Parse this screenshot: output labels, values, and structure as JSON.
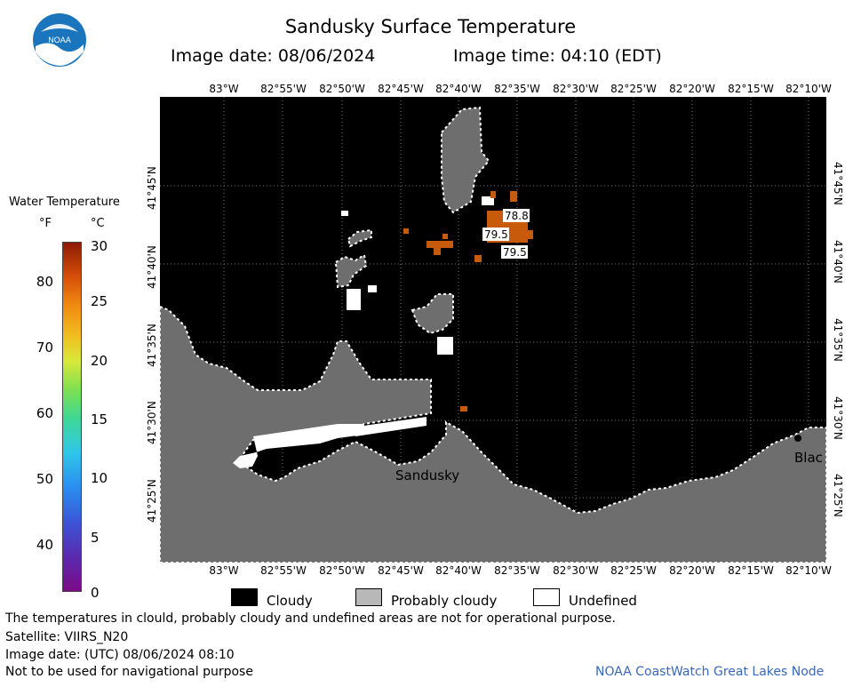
{
  "title": "Sandusky Surface Temperature",
  "image_date_label": "Image date: 08/06/2024",
  "image_time_label": "Image time: 04:10 (EDT)",
  "logo_text": "NOAA",
  "lon_labels": [
    "83°W",
    "82°55'W",
    "82°50'W",
    "82°45'W",
    "82°40'W",
    "82°35'W",
    "82°30'W",
    "82°25'W",
    "82°20'W",
    "82°15'W",
    "82°10'W"
  ],
  "lat_labels": [
    "41°45'N",
    "41°40'N",
    "41°35'N",
    "41°30'N",
    "41°25'N"
  ],
  "place_labels": {
    "sandusky": "Sandusky",
    "blac": "Blac"
  },
  "temp_readings": [
    "78.8",
    "79.5",
    "79.5"
  ],
  "legend": {
    "title": "Water Temperature",
    "unit_f": "°F",
    "unit_c": "°C",
    "f_ticks": [
      "80",
      "70",
      "60",
      "50",
      "40"
    ],
    "c_ticks": [
      "30",
      "25",
      "20",
      "15",
      "10",
      "5",
      "0"
    ]
  },
  "key": {
    "cloudy": "Cloudy",
    "probably_cloudy": "Probably cloudy",
    "undefined": "Undefined"
  },
  "footer": {
    "line1": "The temperatures in clould, probably cloudy and undefined areas are not for operational purpose.",
    "line2": "Satellite: VIIRS_N20",
    "line3": "Image date: (UTC) 08/06/2024  08:10",
    "line4": "Not to be used for navigational purpose",
    "credit": "NOAA CoastWatch Great Lakes Node"
  },
  "colors": {
    "cloudy": "#000000",
    "probably_cloudy": "#6e6e6e",
    "undefined": "#ffffff",
    "warm_water": "#c85a0c",
    "credit": "#3a67b8"
  }
}
